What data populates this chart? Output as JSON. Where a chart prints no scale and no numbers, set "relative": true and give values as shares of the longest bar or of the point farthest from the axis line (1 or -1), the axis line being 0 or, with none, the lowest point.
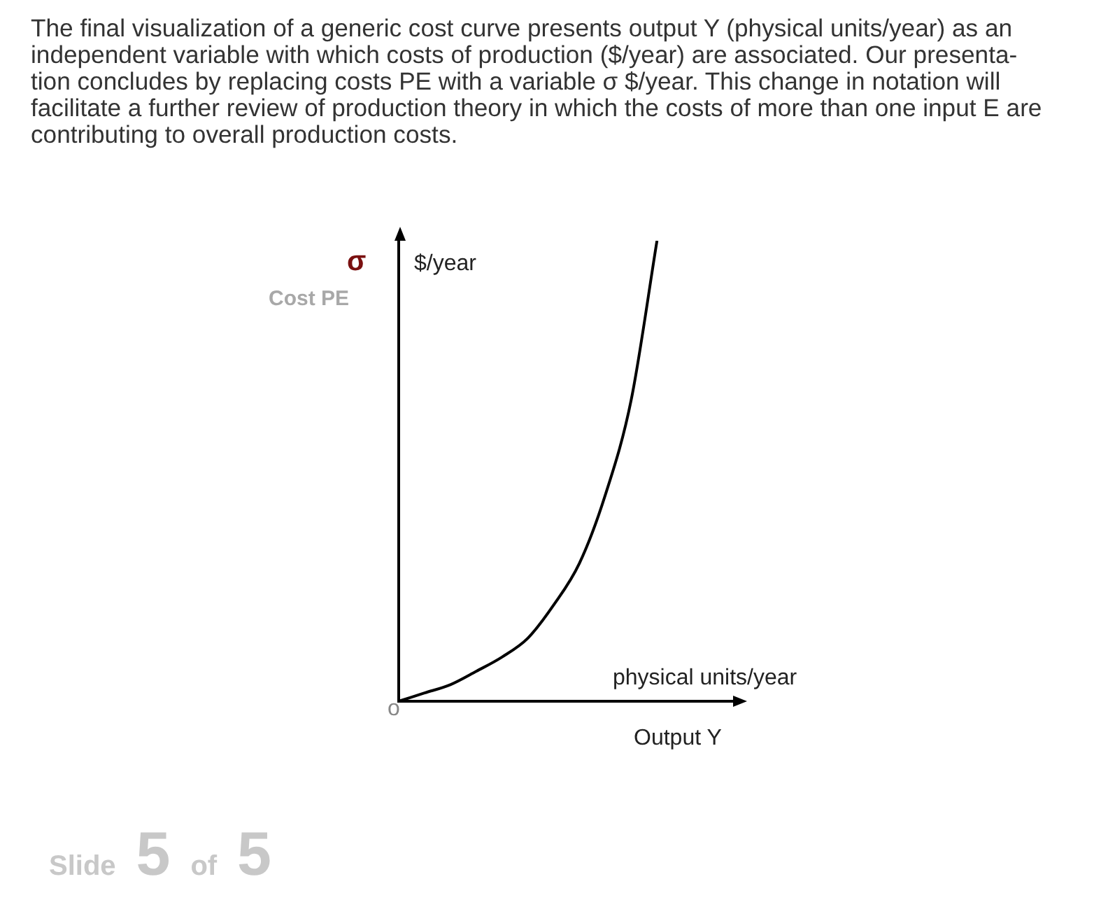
{
  "chart_data": {
    "type": "line",
    "title": "The final visualization of a generic cost curve presents output Y (physical units/year) as an independent variable with which costs of production ($/year) are associated. Our presenta-tion concludes by replacing costs PE with a variable σ $/year. This change in notation will facilitate a further review of production theory in which the costs of more than one input E are contributing to overall production costs.",
    "xlabel": "Output Y",
    "ylabel": "$/year",
    "annotations": [
      "σ",
      "Cost PE",
      "physical units/year",
      "o",
      "Slide 5 of 5"
    ],
    "categories": [
      null,
      null,
      null,
      null,
      null,
      null,
      null,
      null,
      null,
      null,
      null,
      null,
      null,
      null
    ],
    "series": [
      {
        "color": "#000000",
        "values": [
          0,
          0.018,
          0.036,
          0.065,
          0.096,
          0.137,
          0.209,
          0.3,
          0.448,
          0.654,
          1,
          null,
          null,
          null
        ]
      }
    ],
    "relative": true,
    "legend": false,
    "grid": false,
    "tick_labels": false,
    "marker": "none",
    "line_style": "solid"
  }
}
